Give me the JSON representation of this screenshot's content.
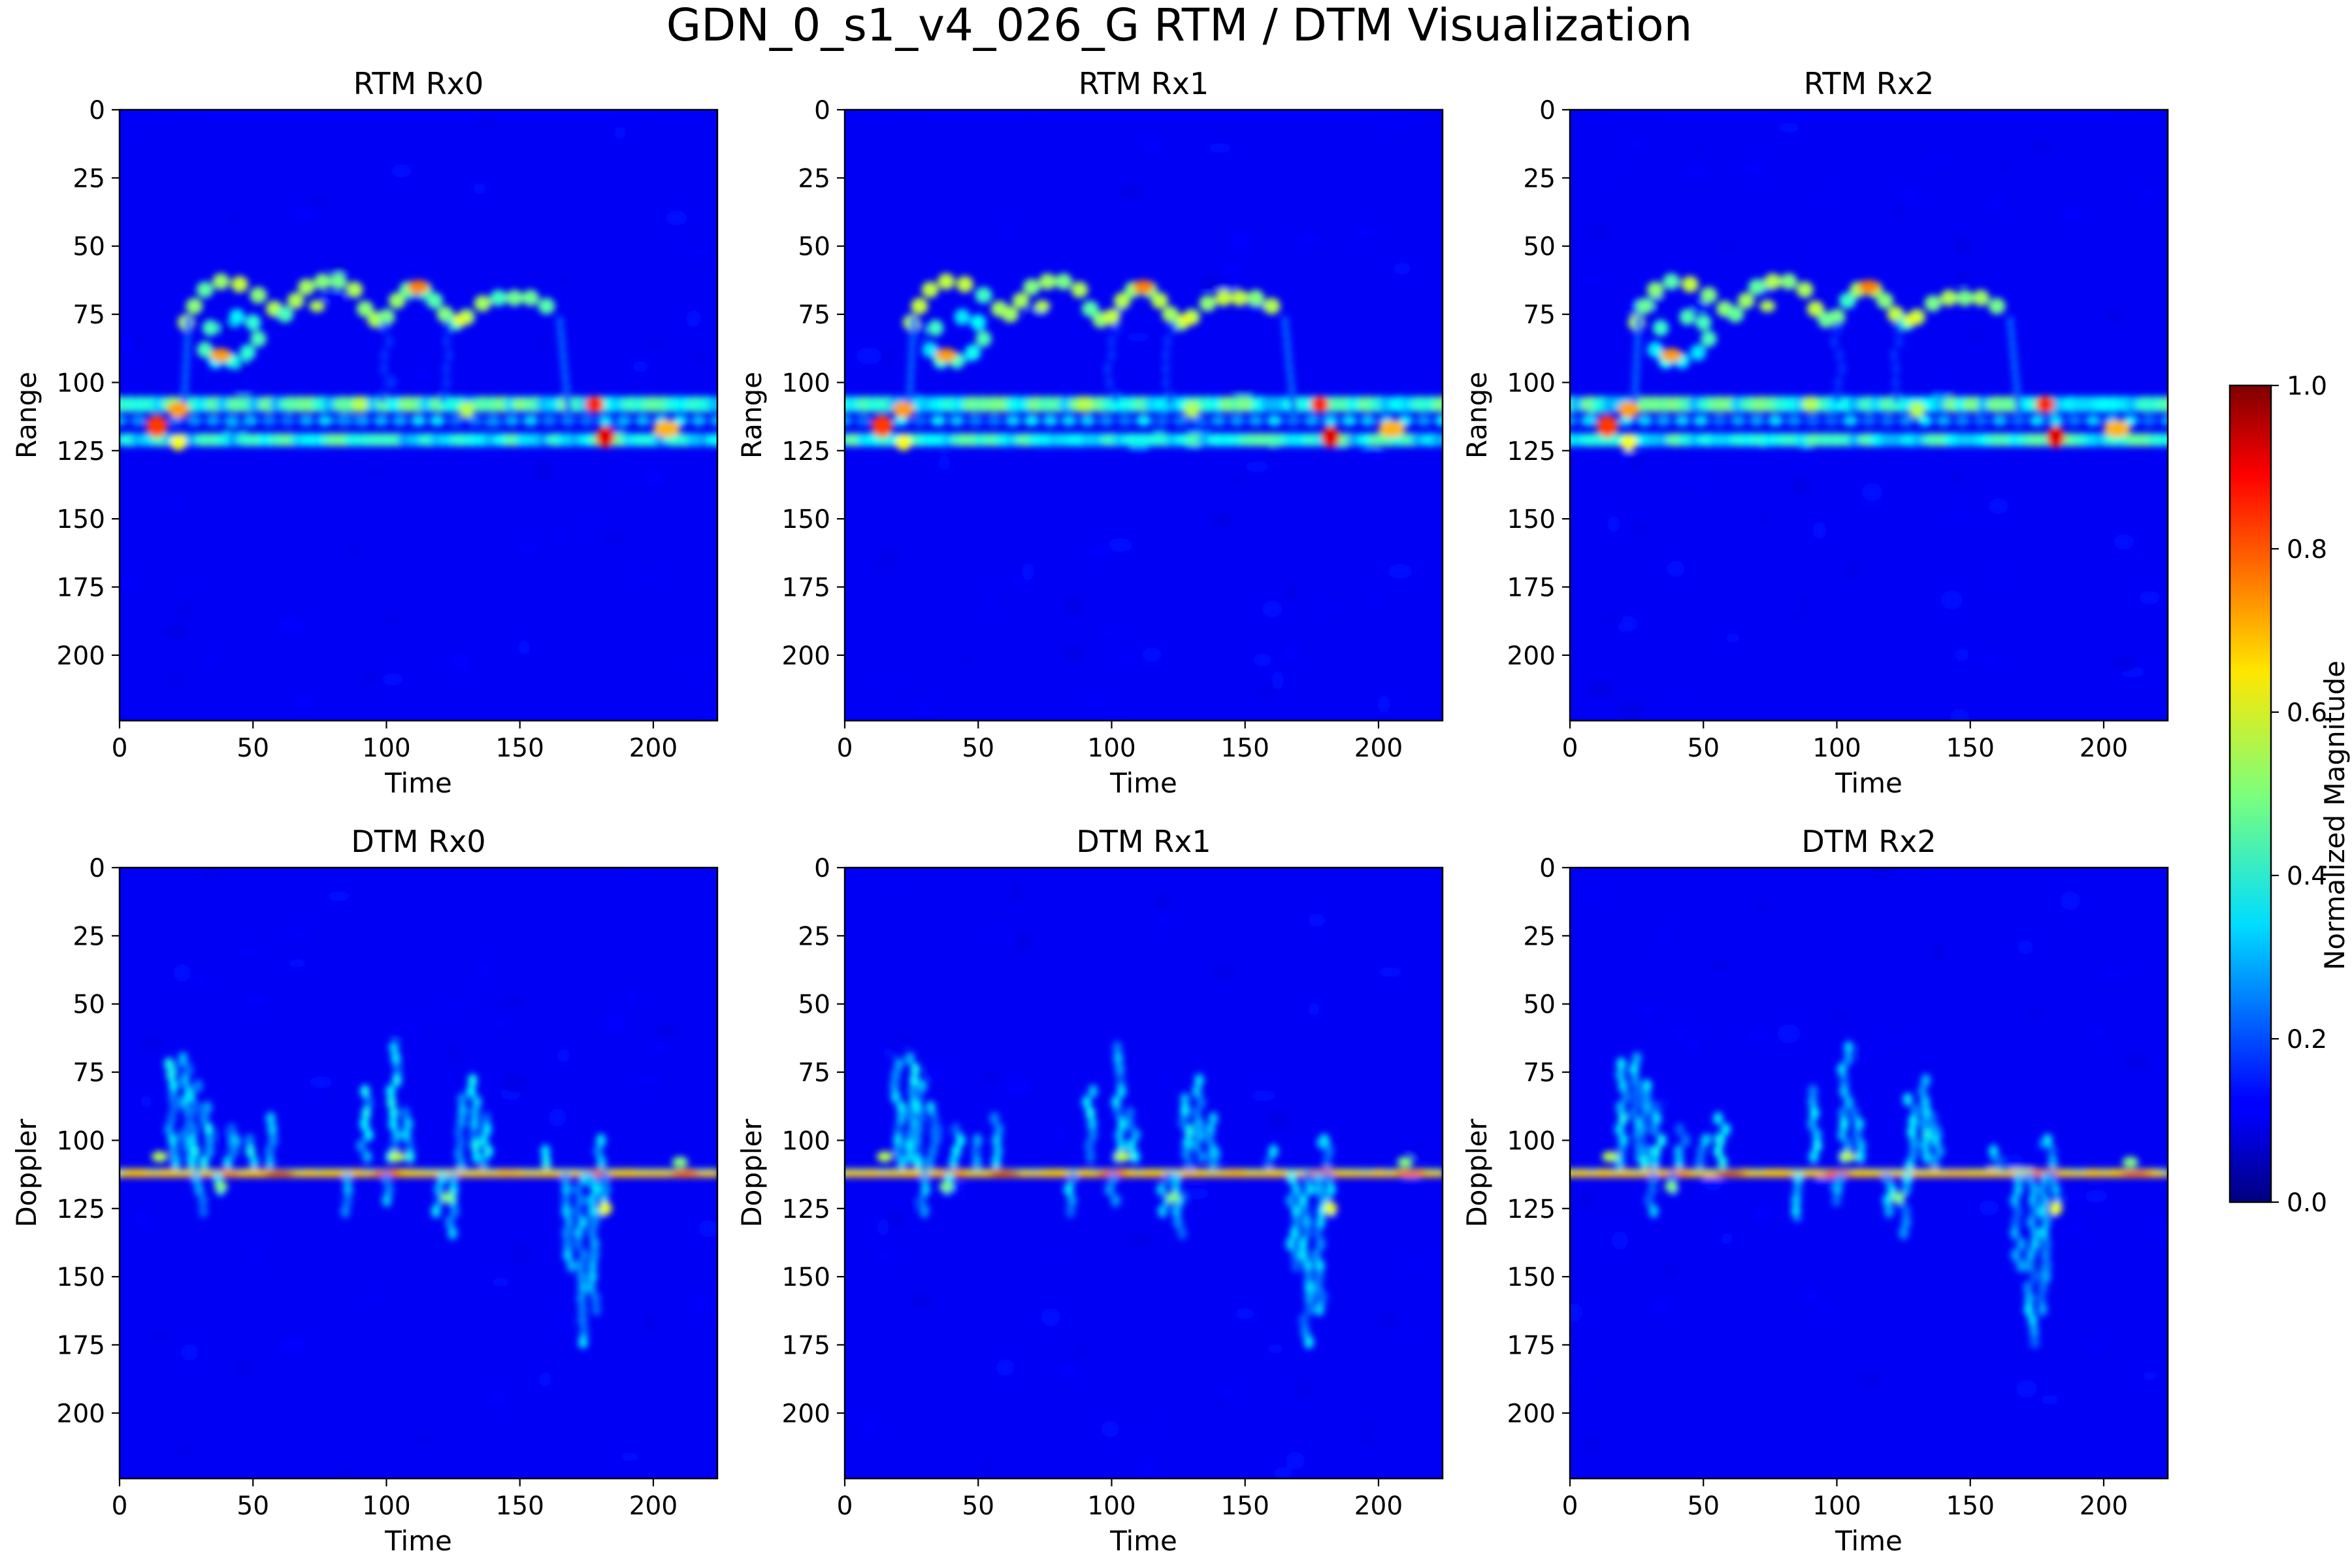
{
  "figure": {
    "title": "GDN_0_s1_v4_026_G RTM / DTM Visualization"
  },
  "chart_data": [
    {
      "type": "heatmap",
      "title": "RTM Rx0",
      "xlabel": "Time",
      "ylabel": "Range",
      "xlim": [
        0,
        224
      ],
      "ylim": [
        224,
        0
      ],
      "xticks": [
        0,
        50,
        100,
        150,
        200
      ],
      "yticks": [
        0,
        25,
        50,
        75,
        100,
        125,
        150,
        175,
        200
      ],
      "colormap": "jet",
      "description_blobs": [
        {
          "x": 38,
          "y": 90,
          "v": 0.75
        },
        {
          "x": 112,
          "y": 65,
          "v": 0.8
        },
        {
          "x": 128,
          "y": 76,
          "v": 0.6
        },
        {
          "x": 12,
          "y": 116,
          "v": 0.85
        },
        {
          "x": 20,
          "y": 122,
          "v": 0.7
        },
        {
          "x": 178,
          "y": 110,
          "v": 0.9
        },
        {
          "x": 182,
          "y": 122,
          "v": 0.95
        },
        {
          "x": 205,
          "y": 118,
          "v": 0.7
        }
      ]
    },
    {
      "type": "heatmap",
      "title": "RTM Rx1",
      "xlabel": "Time",
      "ylabel": "Range",
      "xlim": [
        0,
        224
      ],
      "ylim": [
        224,
        0
      ],
      "xticks": [
        0,
        50,
        100,
        150,
        200
      ],
      "yticks": [
        0,
        25,
        50,
        75,
        100,
        125,
        150,
        175,
        200
      ],
      "colormap": "jet",
      "description_blobs": [
        {
          "x": 38,
          "y": 90,
          "v": 0.75
        },
        {
          "x": 112,
          "y": 65,
          "v": 0.8
        },
        {
          "x": 128,
          "y": 76,
          "v": 0.6
        },
        {
          "x": 12,
          "y": 116,
          "v": 0.85
        },
        {
          "x": 22,
          "y": 110,
          "v": 0.8
        },
        {
          "x": 178,
          "y": 110,
          "v": 0.9
        },
        {
          "x": 182,
          "y": 122,
          "v": 0.95
        },
        {
          "x": 205,
          "y": 118,
          "v": 0.7
        }
      ]
    },
    {
      "type": "heatmap",
      "title": "RTM Rx2",
      "xlabel": "Time",
      "ylabel": "Range",
      "xlim": [
        0,
        224
      ],
      "ylim": [
        224,
        0
      ],
      "xticks": [
        0,
        50,
        100,
        150,
        200
      ],
      "yticks": [
        0,
        25,
        50,
        75,
        100,
        125,
        150,
        175,
        200
      ],
      "colormap": "jet",
      "description_blobs": [
        {
          "x": 38,
          "y": 90,
          "v": 0.75
        },
        {
          "x": 112,
          "y": 65,
          "v": 0.8
        },
        {
          "x": 128,
          "y": 76,
          "v": 0.6
        },
        {
          "x": 12,
          "y": 116,
          "v": 0.85
        },
        {
          "x": 20,
          "y": 122,
          "v": 0.7
        },
        {
          "x": 178,
          "y": 110,
          "v": 0.9
        },
        {
          "x": 182,
          "y": 122,
          "v": 0.85
        },
        {
          "x": 205,
          "y": 118,
          "v": 0.7
        }
      ]
    },
    {
      "type": "heatmap",
      "title": "DTM Rx0",
      "xlabel": "Time",
      "ylabel": "Doppler",
      "xlim": [
        0,
        224
      ],
      "ylim": [
        224,
        0
      ],
      "xticks": [
        0,
        50,
        100,
        150,
        200
      ],
      "yticks": [
        0,
        25,
        50,
        75,
        100,
        125,
        150,
        175,
        200
      ],
      "colormap": "jet",
      "zero_doppler_row": 112
    },
    {
      "type": "heatmap",
      "title": "DTM Rx1",
      "xlabel": "Time",
      "ylabel": "Doppler",
      "xlim": [
        0,
        224
      ],
      "ylim": [
        224,
        0
      ],
      "xticks": [
        0,
        50,
        100,
        150,
        200
      ],
      "yticks": [
        0,
        25,
        50,
        75,
        100,
        125,
        150,
        175,
        200
      ],
      "colormap": "jet",
      "zero_doppler_row": 112
    },
    {
      "type": "heatmap",
      "title": "DTM Rx2",
      "xlabel": "Time",
      "ylabel": "Doppler",
      "xlim": [
        0,
        224
      ],
      "ylim": [
        224,
        0
      ],
      "xticks": [
        0,
        50,
        100,
        150,
        200
      ],
      "yticks": [
        0,
        25,
        50,
        75,
        100,
        125,
        150,
        175,
        200
      ],
      "colormap": "jet",
      "zero_doppler_row": 112
    }
  ],
  "colorbar": {
    "label": "Normalized Magnitude",
    "range": [
      0.0,
      1.0
    ],
    "ticks": [
      "0.0",
      "0.2",
      "0.4",
      "0.6",
      "0.8",
      "1.0"
    ],
    "colormap": "jet"
  }
}
